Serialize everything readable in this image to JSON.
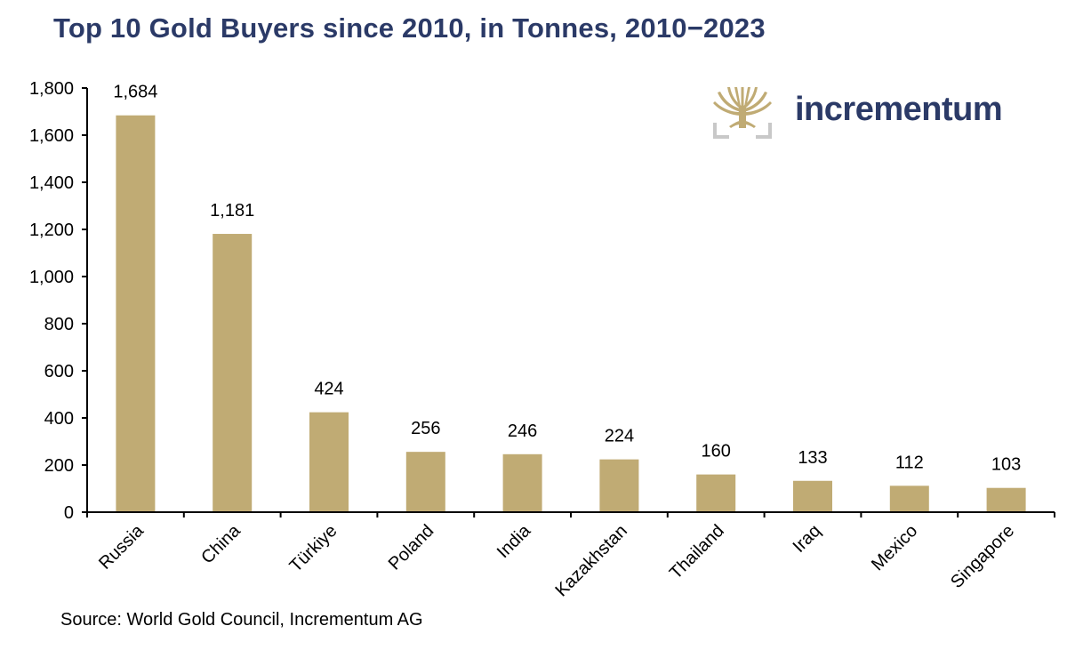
{
  "title": "Top 10 Gold Buyers since 2010, in Tonnes, 2010−2023",
  "source": "Source: World Gold Council, Incrementum AG",
  "brand": {
    "name": "incrementum",
    "logo_icon": "tree-icon"
  },
  "colors": {
    "bar": "#c0ab74",
    "title": "#2b3a67",
    "axis": "#000000",
    "logo_gray": "#c8c8c8"
  },
  "chart_data": {
    "type": "bar",
    "title": "Top 10 Gold Buyers since 2010, in Tonnes, 2010−2023",
    "xlabel": "",
    "ylabel": "",
    "categories": [
      "Russia",
      "China",
      "Türkiye",
      "Poland",
      "India",
      "Kazakhstan",
      "Thailand",
      "Iraq",
      "Mexico",
      "Singapore"
    ],
    "values": [
      1684,
      1181,
      424,
      256,
      246,
      224,
      160,
      133,
      112,
      103
    ],
    "data_labels": [
      "1,684",
      "1,181",
      "424",
      "256",
      "246",
      "224",
      "160",
      "133",
      "112",
      "103"
    ],
    "ylim": [
      0,
      1800
    ],
    "yticks": [
      0,
      200,
      400,
      600,
      800,
      1000,
      1200,
      1400,
      1600,
      1800
    ],
    "ytick_labels": [
      "0",
      "200",
      "400",
      "600",
      "800",
      "1,000",
      "1,200",
      "1,400",
      "1,600",
      "1,800"
    ],
    "grid": false,
    "legend": "none"
  }
}
